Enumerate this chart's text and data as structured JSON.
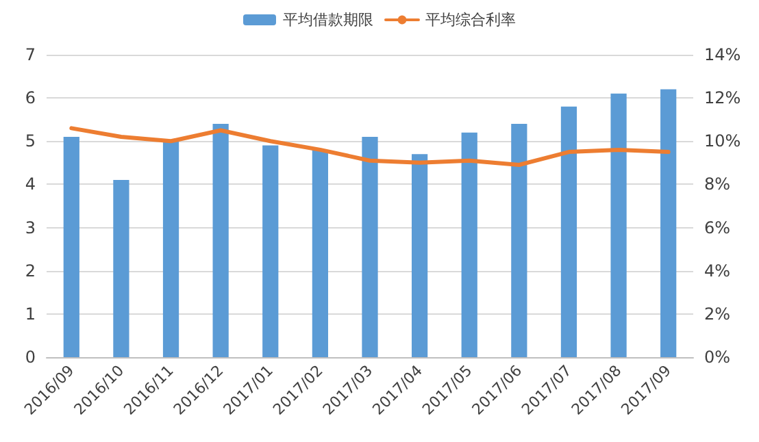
{
  "chart_data": {
    "type": "bar",
    "categories": [
      "2016/09",
      "2016/10",
      "2016/11",
      "2016/12",
      "2017/01",
      "2017/02",
      "2017/03",
      "2017/04",
      "2017/05",
      "2017/06",
      "2017/07",
      "2017/08",
      "2017/09"
    ],
    "series": [
      {
        "name": "平均借款期限",
        "color": "#5b9bd5",
        "values": [
          5.1,
          4.1,
          5.0,
          5.4,
          4.9,
          4.8,
          5.1,
          4.7,
          5.2,
          5.4,
          5.8,
          6.1,
          6.2
        ]
      },
      {
        "name": "平均综合利率",
        "type": "line",
        "axis": "y2",
        "color": "#ed7d31",
        "values": [
          10.6,
          10.2,
          10.0,
          10.5,
          10.0,
          9.6,
          9.1,
          9.0,
          9.1,
          8.9,
          9.5,
          9.6,
          9.5
        ]
      }
    ],
    "ylim": [
      0,
      7
    ],
    "yticks": [
      0,
      1,
      2,
      3,
      4,
      5,
      6,
      7
    ],
    "y2lim": [
      0,
      14
    ],
    "y2ticks": [
      {
        "value": 0,
        "label": "0%"
      },
      {
        "value": 2,
        "label": "2%"
      },
      {
        "value": 4,
        "label": "4%"
      },
      {
        "value": 6,
        "label": "6%"
      },
      {
        "value": 8,
        "label": "8%"
      },
      {
        "value": 10,
        "label": "10%"
      },
      {
        "value": 12,
        "label": "12%"
      },
      {
        "value": 14,
        "label": "14%"
      }
    ],
    "grid": "y",
    "legend": "top",
    "marker": "none",
    "line_style": "solid"
  }
}
